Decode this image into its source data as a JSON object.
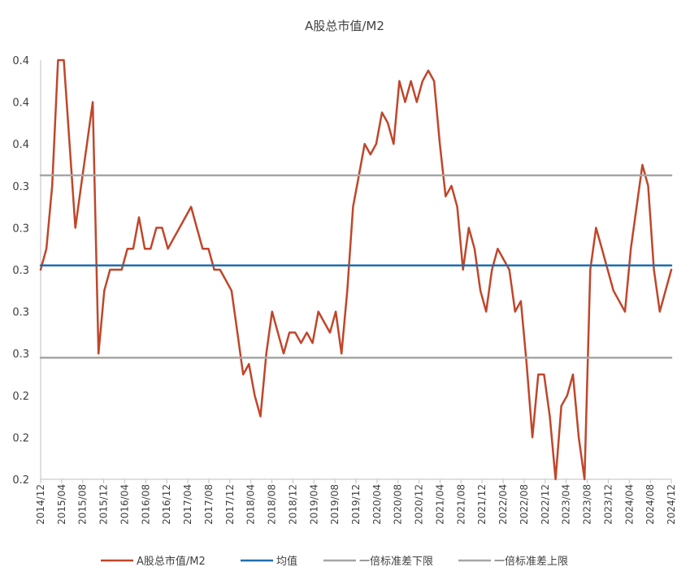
{
  "chart_data": {
    "type": "line",
    "title": "A股总市值/M2",
    "xlabel": "",
    "ylabel": "",
    "ylim": [
      0.2,
      0.4
    ],
    "y_tick_labels": [
      "0.4",
      "0.4",
      "0.4",
      "0.3",
      "0.3",
      "0.3",
      "0.3",
      "0.3",
      "0.2",
      "0.2",
      "0.2"
    ],
    "x_tick_labels": [
      "2014/12",
      "2015/04",
      "2015/08",
      "2015/12",
      "2016/04",
      "2016/08",
      "2016/12",
      "2017/04",
      "2017/08",
      "2017/12",
      "2018/04",
      "2018/08",
      "2018/12",
      "2019/04",
      "2019/08",
      "2019/12",
      "2020/04",
      "2020/08",
      "2020/12",
      "2021/04",
      "2021/08",
      "2021/12",
      "2022/04",
      "2022/08",
      "2022/12",
      "2023/04",
      "2023/08",
      "2023/12",
      "2024/04",
      "2024/08",
      "2024/12"
    ],
    "legend_position": "bottom",
    "series": [
      {
        "name": "A股总市值/M2",
        "color": "#C0462A",
        "values": [
          0.3,
          0.31,
          0.34,
          0.4,
          0.4,
          0.36,
          0.32,
          0.34,
          0.36,
          0.38,
          0.26,
          0.29,
          0.3,
          0.3,
          0.3,
          0.31,
          0.31,
          0.325,
          0.31,
          0.31,
          0.32,
          0.32,
          0.31,
          0.315,
          0.32,
          0.325,
          0.33,
          0.32,
          0.31,
          0.31,
          0.3,
          0.3,
          0.295,
          0.29,
          0.27,
          0.25,
          0.255,
          0.24,
          0.23,
          0.26,
          0.28,
          0.27,
          0.26,
          0.27,
          0.27,
          0.265,
          0.27,
          0.265,
          0.28,
          0.275,
          0.27,
          0.28,
          0.26,
          0.29,
          0.33,
          0.345,
          0.36,
          0.355,
          0.36,
          0.375,
          0.37,
          0.36,
          0.39,
          0.38,
          0.39,
          0.38,
          0.39,
          0.395,
          0.39,
          0.36,
          0.335,
          0.34,
          0.33,
          0.3,
          0.32,
          0.31,
          0.29,
          0.28,
          0.3,
          0.31,
          0.305,
          0.3,
          0.28,
          0.285,
          0.255,
          0.22,
          0.25,
          0.25,
          0.23,
          0.19,
          0.235,
          0.24,
          0.25,
          0.22,
          0.2,
          0.3,
          0.32,
          0.31,
          0.3,
          0.29,
          0.285,
          0.28,
          0.31,
          0.33,
          0.35,
          0.34,
          0.3,
          0.28,
          0.29,
          0.3
        ]
      },
      {
        "name": "均值",
        "color": "#1F6FB2",
        "values": [
          0.302,
          0.302
        ]
      },
      {
        "name": "一倍标准差下限",
        "color": "#A6A6A6",
        "values": [
          0.258,
          0.258
        ]
      },
      {
        "name": "一倍标准差上限",
        "color": "#A6A6A6",
        "values": [
          0.345,
          0.345
        ]
      }
    ]
  }
}
